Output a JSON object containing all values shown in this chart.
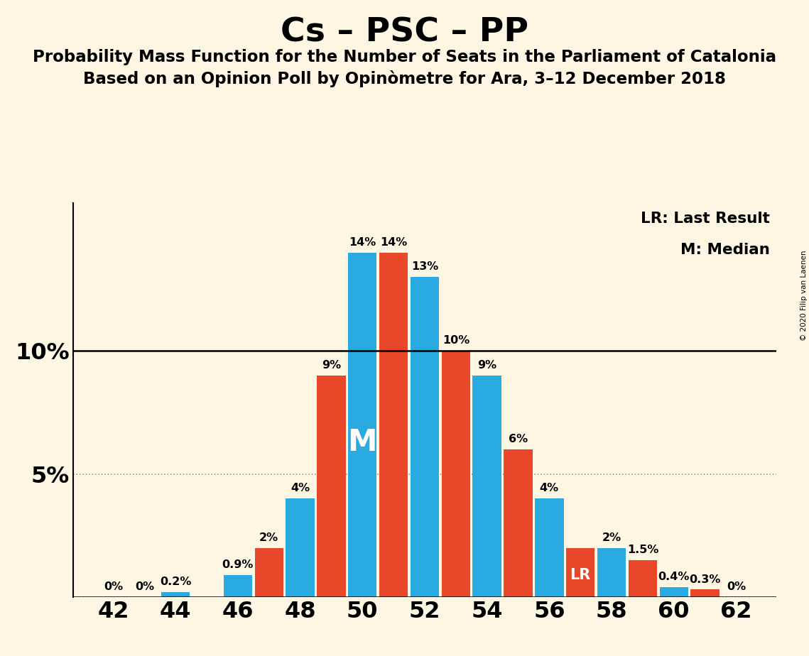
{
  "title": "Cs – PSC – PP",
  "subtitle1": "Probability Mass Function for the Number of Seats in the Parliament of Catalonia",
  "subtitle2": "Based on an Opinion Poll by Opinòmetre for Ara, 3–12 December 2018",
  "copyright": "© 2020 Filip van Laenen",
  "legend_lr": "LR: Last Result",
  "legend_m": "M: Median",
  "background_color": "#fdf6e3",
  "bar_color_blue": "#29abe2",
  "bar_color_red": "#e8472a",
  "seats": [
    42,
    43,
    44,
    45,
    46,
    47,
    48,
    49,
    50,
    51,
    52,
    53,
    54,
    55,
    56,
    57,
    58,
    59,
    60,
    61,
    62
  ],
  "blue_values": [
    0.0,
    0.0,
    0.2,
    0.0,
    0.9,
    0.0,
    4.0,
    0.0,
    14.0,
    0.0,
    13.0,
    0.0,
    9.0,
    0.0,
    4.0,
    0.0,
    2.0,
    0.0,
    0.4,
    0.0,
    0.0
  ],
  "red_values": [
    0.0,
    0.0,
    0.0,
    0.0,
    0.0,
    2.0,
    0.0,
    9.0,
    0.0,
    14.0,
    0.0,
    10.0,
    0.0,
    6.0,
    0.0,
    2.0,
    0.0,
    1.5,
    0.0,
    0.3,
    0.0
  ],
  "blue_labels": [
    "0%",
    "",
    "0.2%",
    "",
    "0.9%",
    "",
    "4%",
    "",
    "14%",
    "",
    "13%",
    "",
    "9%",
    "",
    "4%",
    "",
    "2%",
    "",
    "0.4%",
    "",
    "0%"
  ],
  "red_labels": [
    "",
    "",
    "",
    "",
    "",
    "2%",
    "",
    "9%",
    "",
    "14%",
    "",
    "10%",
    "",
    "6%",
    "",
    "",
    "",
    "1.5%",
    "",
    "0.3%",
    ""
  ],
  "lr_seat": 57,
  "median_seat": 50,
  "ylim": [
    0,
    16
  ],
  "yticks": [
    0,
    5,
    10
  ],
  "xticks": [
    42,
    44,
    46,
    48,
    50,
    52,
    54,
    56,
    58,
    60,
    62
  ],
  "bar_width": 0.92,
  "label_fontsize": 11.5,
  "title_fontsize": 34,
  "subtitle_fontsize": 16.5,
  "axis_tick_fontsize": 23,
  "ytick_label_fontsize": 23,
  "grid_linewidth": 1.2,
  "grid_color": "#999999"
}
